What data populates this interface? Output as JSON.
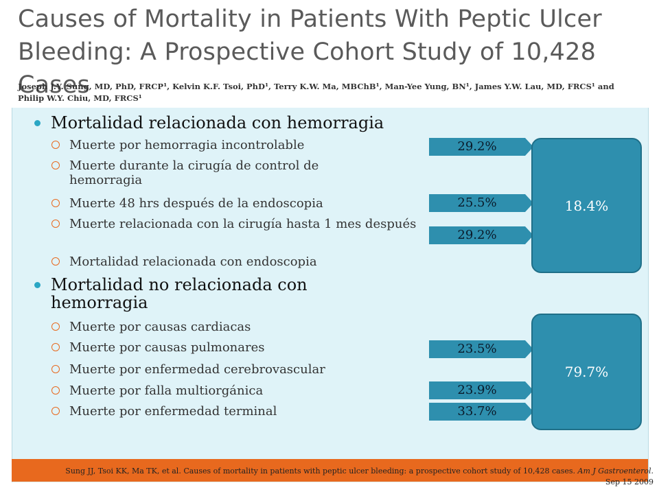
{
  "header": {
    "title": "Causes of Mortality in Patients With Peptic Ulcer Bleeding: A Prospective Cohort Study of 10,428 Cases",
    "authors": "Joseph J.Y. Sung, MD, PhD, FRCP¹, Kelvin K.F. Tsoi, PhD¹, Terry K.W. Ma, MBChB¹, Man-Yee Yung, BN¹, James Y.W. Lau, MD, FRCS¹ and Philip W.Y. Chiu, MD, FRCS¹"
  },
  "content": {
    "sections": [
      {
        "heading": "Mortalidad relacionada con hemorragia",
        "items": [
          "Muerte por hemorragia incontrolable",
          "Muerte durante la cirugía de control de hemorragia",
          "Muerte 48 hrs después de la endoscopia",
          "Muerte relacionada con la cirugía hasta 1 mes después",
          "Mortalidad relacionada con endoscopia"
        ]
      },
      {
        "heading": "Mortalidad no relacionada con hemorragia",
        "items": [
          "Muerte por causas cardiacas",
          "Muerte por causas pulmonares",
          "Muerte por enfermedad cerebrovascular",
          "Muerte por falla multiorgánica",
          "Muerte por enfermedad terminal"
        ]
      }
    ],
    "percent_tags": [
      "29.2%",
      "25.5%",
      "29.2%",
      "23.5%",
      "23.9%",
      "33.7%"
    ],
    "group_totals": [
      "18.4%",
      "79.7%"
    ]
  },
  "footer": {
    "citation_main": "Sung JJ, Tsoi KK, Ma TK, et al. Causes of mortality in patients with peptic ulcer bleeding: a prospective cohort study of 10,428 cases.",
    "citation_journal": "Am J Gastroenterol.",
    "citation_date": "Sep 15 2009"
  },
  "colors": {
    "panel_bg": "#dff3f8",
    "accent_orange": "#e8691e",
    "box_teal": "#2e8fae",
    "bullet_teal": "#2aa6c4"
  }
}
